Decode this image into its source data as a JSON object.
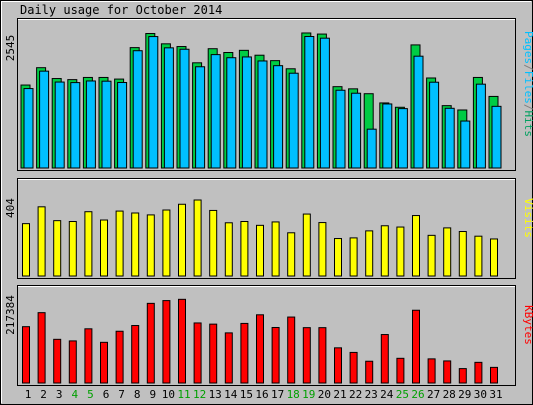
{
  "chart_data": {
    "type": "bar",
    "title": "Daily usage for October 2014",
    "days": [
      "1",
      "2",
      "3",
      "4",
      "5",
      "6",
      "7",
      "8",
      "9",
      "10",
      "11",
      "12",
      "13",
      "14",
      "15",
      "16",
      "17",
      "18",
      "19",
      "20",
      "21",
      "22",
      "23",
      "24",
      "25",
      "26",
      "27",
      "28",
      "29",
      "30",
      "31"
    ],
    "weekend_days": [
      "4",
      "5",
      "11",
      "12",
      "18",
      "19",
      "25",
      "26"
    ],
    "panels": [
      {
        "id": "pages",
        "max_label": "2545",
        "ymax": 2545,
        "label_parts": [
          {
            "text": "Pages",
            "color": "#00c0ff"
          },
          {
            "text": "/",
            "color": "#808080"
          },
          {
            "text": "Files",
            "color": "#00c0ff"
          },
          {
            "text": "/",
            "color": "#808080"
          },
          {
            "text": "Hits",
            "color": "#00a060"
          }
        ],
        "series": [
          {
            "name": "Hits",
            "color": "#00cc44",
            "values": [
              1530,
              1850,
              1650,
              1630,
              1670,
              1670,
              1640,
              2220,
              2480,
              2290,
              2240,
              1940,
              2200,
              2130,
              2170,
              2080,
              1980,
              1830,
              2490,
              2470,
              1500,
              1460,
              1370,
              1200,
              1120,
              2270,
              1660,
              1150,
              1070,
              1670,
              1320
            ]
          },
          {
            "name": "Files",
            "color": "#00c0ff",
            "values": [
              1465,
              1786,
              1585,
              1575,
              1605,
              1601,
              1577,
              2163,
              2424,
              2216,
              2190,
              1867,
              2091,
              2034,
              2048,
              1974,
              1887,
              1748,
              2425,
              2394,
              1434,
              1379,
              716,
              1181,
              1095,
              2062,
              1582,
              1101,
              866,
              1546,
              1137
            ]
          }
        ]
      },
      {
        "id": "visits",
        "max_label": "404",
        "ymax": 404,
        "label_parts": [
          {
            "text": "Visits",
            "color": "#ffff00"
          }
        ],
        "series": [
          {
            "name": "Visits",
            "color": "#ffff00",
            "values": [
              246,
              325,
              260,
              256,
              302,
              263,
              305,
              296,
              287,
              310,
              337,
              357,
              308,
              250,
              256,
              238,
              254,
              203,
              291,
              251,
              176,
              179,
              212,
              236,
              230,
              284,
              191,
              226,
              209,
              187,
              174
            ]
          }
        ]
      },
      {
        "id": "kbytes",
        "max_label": "217384",
        "ymax": 217384,
        "label_parts": [
          {
            "text": "KBytes",
            "color": "#ff0000"
          }
        ],
        "series": [
          {
            "name": "KBytes",
            "color": "#ff0000",
            "values": [
              142400,
              177800,
              110400,
              106400,
              137000,
              102800,
              130800,
              145300,
              201300,
              208300,
              211500,
              151800,
              148800,
              126700,
              150600,
              172400,
              140300,
              166700,
              139900,
              139900,
              88900,
              77300,
              55000,
              122500,
              62400,
              183900,
              61000,
              55800,
              36400,
              52200,
              39500
            ]
          }
        ]
      }
    ]
  }
}
